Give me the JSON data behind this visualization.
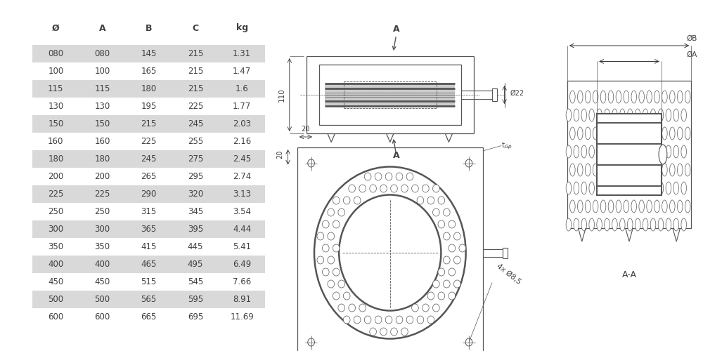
{
  "table_headers": [
    "Ø",
    "A",
    "B",
    "C",
    "kg"
  ],
  "table_rows": [
    [
      "080",
      "080",
      "145",
      "215",
      "1.31"
    ],
    [
      "100",
      "100",
      "165",
      "215",
      "1.47"
    ],
    [
      "115",
      "115",
      "180",
      "215",
      "1.6"
    ],
    [
      "130",
      "130",
      "195",
      "225",
      "1.77"
    ],
    [
      "150",
      "150",
      "215",
      "245",
      "2.03"
    ],
    [
      "160",
      "160",
      "225",
      "255",
      "2.16"
    ],
    [
      "180",
      "180",
      "245",
      "275",
      "2.45"
    ],
    [
      "200",
      "200",
      "265",
      "295",
      "2.74"
    ],
    [
      "225",
      "225",
      "290",
      "320",
      "3.13"
    ],
    [
      "250",
      "250",
      "315",
      "345",
      "3.54"
    ],
    [
      "300",
      "300",
      "365",
      "395",
      "4.44"
    ],
    [
      "350",
      "350",
      "415",
      "445",
      "5.41"
    ],
    [
      "400",
      "400",
      "465",
      "495",
      "6.49"
    ],
    [
      "450",
      "450",
      "515",
      "545",
      "7.66"
    ],
    [
      "500",
      "500",
      "565",
      "595",
      "8.91"
    ],
    [
      "600",
      "600",
      "665",
      "695",
      "11.69"
    ]
  ],
  "shaded_rows": [
    0,
    2,
    4,
    6,
    8,
    10,
    12,
    14
  ],
  "row_bg_shaded": "#d9d9d9",
  "row_bg_white": "#ffffff",
  "text_color": "#404040",
  "bg_color": "#ffffff",
  "line_color": "#555555"
}
